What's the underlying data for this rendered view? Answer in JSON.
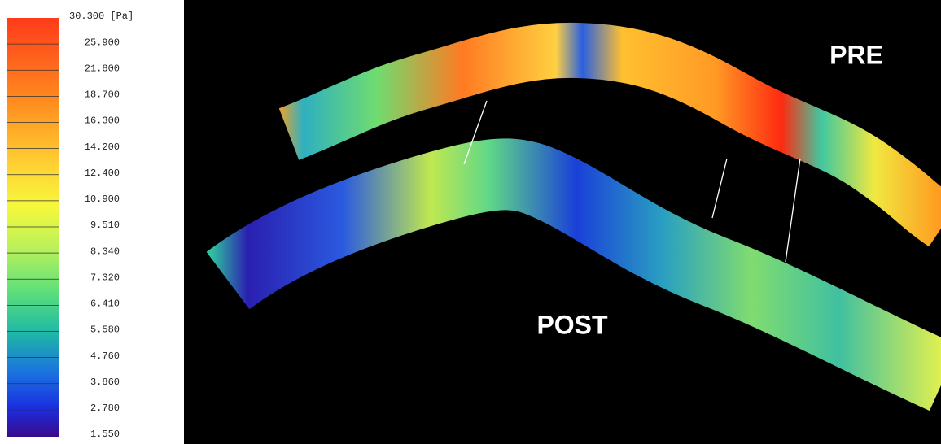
{
  "colorbar": {
    "ticks": [
      {
        "value": 30.3,
        "label": "30.300 [Pa]"
      },
      {
        "value": 25.9,
        "label": "25.900"
      },
      {
        "value": 21.8,
        "label": "21.800"
      },
      {
        "value": 18.7,
        "label": "18.700"
      },
      {
        "value": 16.3,
        "label": "16.300"
      },
      {
        "value": 14.2,
        "label": "14.200"
      },
      {
        "value": 12.4,
        "label": "12.400"
      },
      {
        "value": 10.9,
        "label": "10.900"
      },
      {
        "value": 9.51,
        "label": "9.510"
      },
      {
        "value": 8.34,
        "label": "8.340"
      },
      {
        "value": 7.32,
        "label": "7.320"
      },
      {
        "value": 6.41,
        "label": "6.410"
      },
      {
        "value": 5.58,
        "label": "5.580"
      },
      {
        "value": 4.76,
        "label": "4.760"
      },
      {
        "value": 3.86,
        "label": "3.860"
      },
      {
        "value": 2.78,
        "label": "2.780"
      },
      {
        "value": 1.55,
        "label": "1.550"
      }
    ]
  },
  "labels": {
    "pre": "PRE",
    "post": "POST"
  }
}
